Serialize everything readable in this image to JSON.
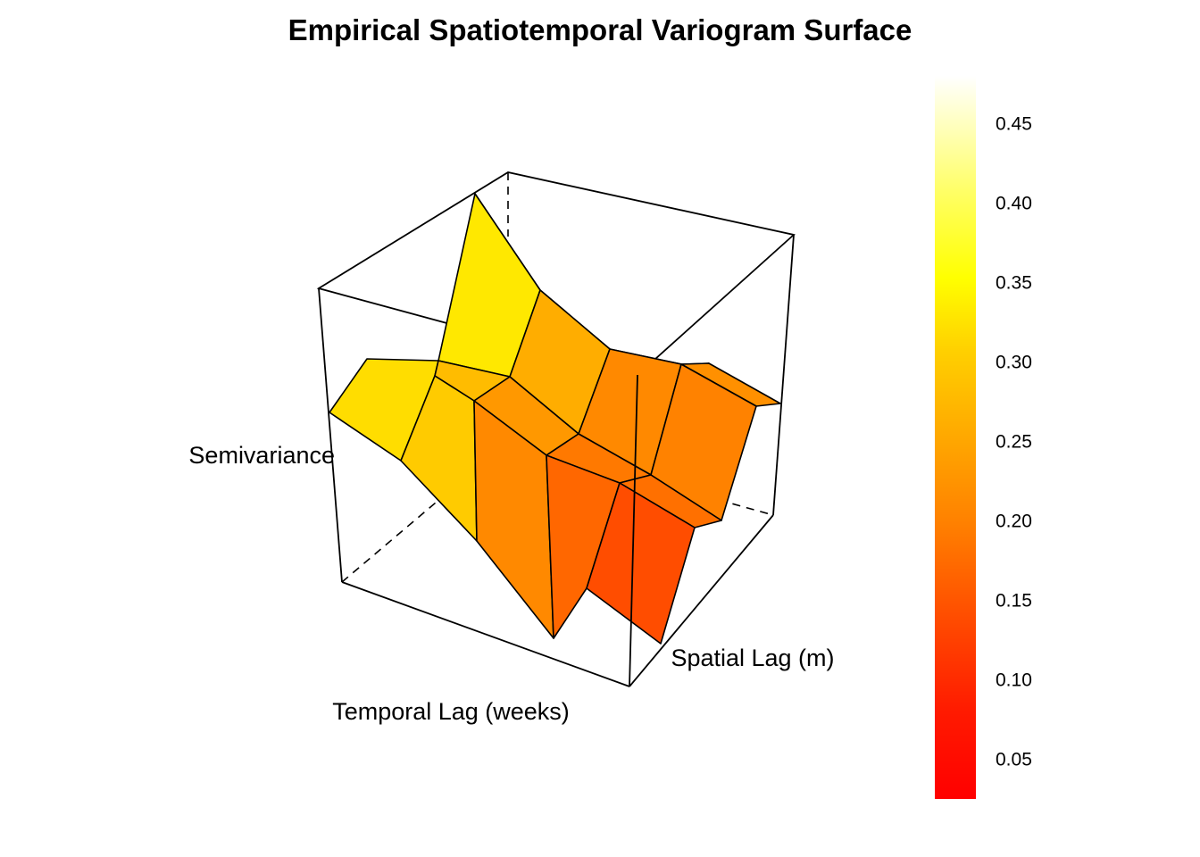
{
  "chart_data": {
    "type": "surface3d",
    "title": "Empirical Spatiotemporal Variogram Surface",
    "xlabel": "Spatial Lag (m)",
    "ylabel": "Temporal Lag (weeks)",
    "zlabel": "Semivariance",
    "grid": false,
    "legend": "right",
    "colorbar": {
      "palette": "heat",
      "range": [
        0.025,
        0.48
      ],
      "ticks": [
        "0.05",
        "0.10",
        "0.15",
        "0.20",
        "0.25",
        "0.30",
        "0.35",
        "0.40",
        "0.45"
      ],
      "tick_values": [
        0.05,
        0.1,
        0.15,
        0.2,
        0.25,
        0.3,
        0.35,
        0.4,
        0.45
      ]
    },
    "surface_points": [
      [
        [
          0.14,
          0.18,
          0.16,
          0.2,
          0.25
        ],
        [
          0.12,
          0.16,
          0.2,
          0.22,
          0.24
        ],
        [
          0.16,
          0.2,
          0.24,
          0.23,
          0.27
        ],
        [
          0.22,
          0.27,
          0.29,
          0.28,
          0.31
        ],
        [
          0.27,
          0.3,
          0.34,
          0.31,
          0.4
        ]
      ],
      [
        [
          0.08,
          0.1,
          0.12,
          0.14,
          0.18
        ],
        [
          0.12,
          0.15,
          0.17,
          0.19,
          0.21
        ],
        [
          0.15,
          0.19,
          0.21,
          0.23,
          0.25
        ],
        [
          0.2,
          0.24,
          0.26,
          0.28,
          0.29
        ],
        [
          0.24,
          0.27,
          0.3,
          0.31,
          0.33
        ]
      ]
    ],
    "patch_values": [
      [
        0.14,
        0.18,
        0.2,
        0.22
      ],
      [
        0.17,
        0.19,
        0.21,
        0.23
      ],
      [
        0.21,
        0.23,
        0.26,
        0.27
      ],
      [
        0.3,
        0.28,
        0.33,
        0.38
      ]
    ]
  }
}
